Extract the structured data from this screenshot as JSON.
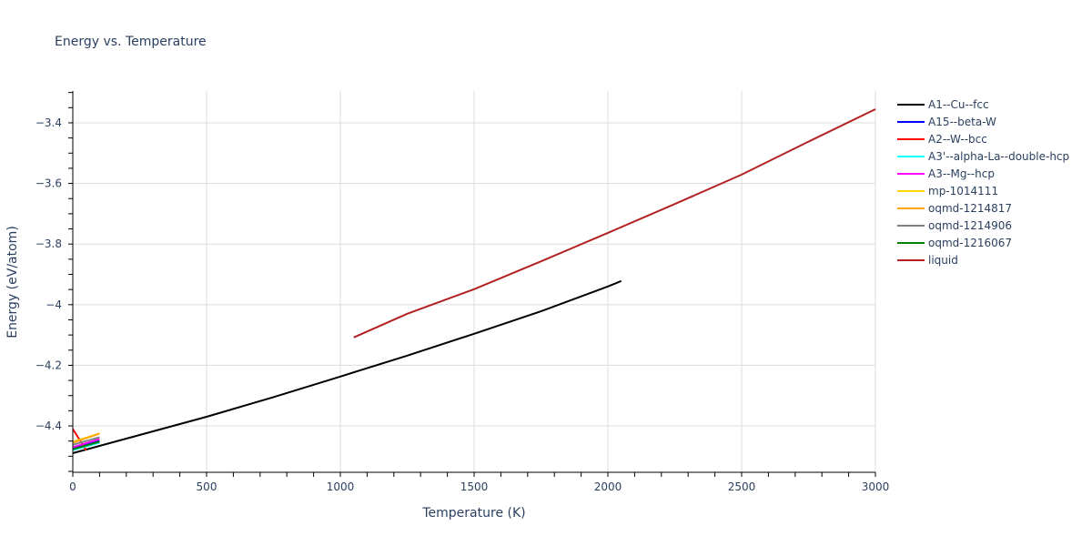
{
  "chart_data": {
    "type": "line",
    "title": "Energy vs. Temperature",
    "xlabel": "Temperature (K)",
    "ylabel": "Energy (eV/atom)",
    "xlim": [
      0,
      3000
    ],
    "ylim": [
      -4.553,
      -3.295
    ],
    "x_ticks": [
      0,
      500,
      1000,
      1500,
      2000,
      2500,
      3000
    ],
    "x_tick_labels": [
      "0",
      "500",
      "1000",
      "1500",
      "2000",
      "2500",
      "3000"
    ],
    "y_ticks": [
      -4.4,
      -4.2,
      -4.0,
      -3.8,
      -3.6,
      -3.4
    ],
    "y_tick_labels": [
      "−4.4",
      "−4.2",
      "−4",
      "−3.8",
      "−3.6",
      "−3.4"
    ],
    "grid": true,
    "legend_position": "right",
    "series": [
      {
        "name": "A1--Cu--fcc",
        "color": "#000000",
        "x": [
          0,
          250,
          500,
          750,
          1000,
          1250,
          1500,
          1750,
          2000,
          2050
        ],
        "y": [
          -4.49,
          -4.43,
          -4.37,
          -4.305,
          -4.237,
          -4.168,
          -4.096,
          -4.022,
          -3.94,
          -3.922
        ]
      },
      {
        "name": "A15--beta-W",
        "color": "#0000ff",
        "x": [
          0,
          100
        ],
        "y": [
          -4.475,
          -4.45
        ]
      },
      {
        "name": "A2--W--bcc",
        "color": "#ff0000",
        "x": [
          0,
          50
        ],
        "y": [
          -4.41,
          -4.48
        ]
      },
      {
        "name": "A3'--alpha-La--double-hcp",
        "color": "#00ffff",
        "x": [
          0,
          100
        ],
        "y": [
          -4.48,
          -4.455
        ]
      },
      {
        "name": "A3--Mg--hcp",
        "color": "#ff00ff",
        "x": [
          0,
          100
        ],
        "y": [
          -4.47,
          -4.443
        ]
      },
      {
        "name": "mp-1014111",
        "color": "#ffd700",
        "x": [
          0,
          100
        ],
        "y": [
          -4.452,
          -4.425
        ]
      },
      {
        "name": "oqmd-1214817",
        "color": "#ffa500",
        "x": [
          0,
          100
        ],
        "y": [
          -4.455,
          -4.425
        ]
      },
      {
        "name": "oqmd-1214906",
        "color": "#808080",
        "x": [
          0,
          100
        ],
        "y": [
          -4.462,
          -4.437
        ]
      },
      {
        "name": "oqmd-1216067",
        "color": "#008000",
        "x": [
          0,
          100
        ],
        "y": [
          -4.477,
          -4.452
        ]
      },
      {
        "name": "liquid",
        "color": "#b22222",
        "x": [
          1050,
          1250,
          1500,
          1750,
          2000,
          2250,
          2500,
          2750,
          3000
        ],
        "y": [
          -4.108,
          -4.03,
          -3.949,
          -3.857,
          -3.763,
          -3.668,
          -3.571,
          -3.462,
          -3.355
        ]
      }
    ]
  }
}
